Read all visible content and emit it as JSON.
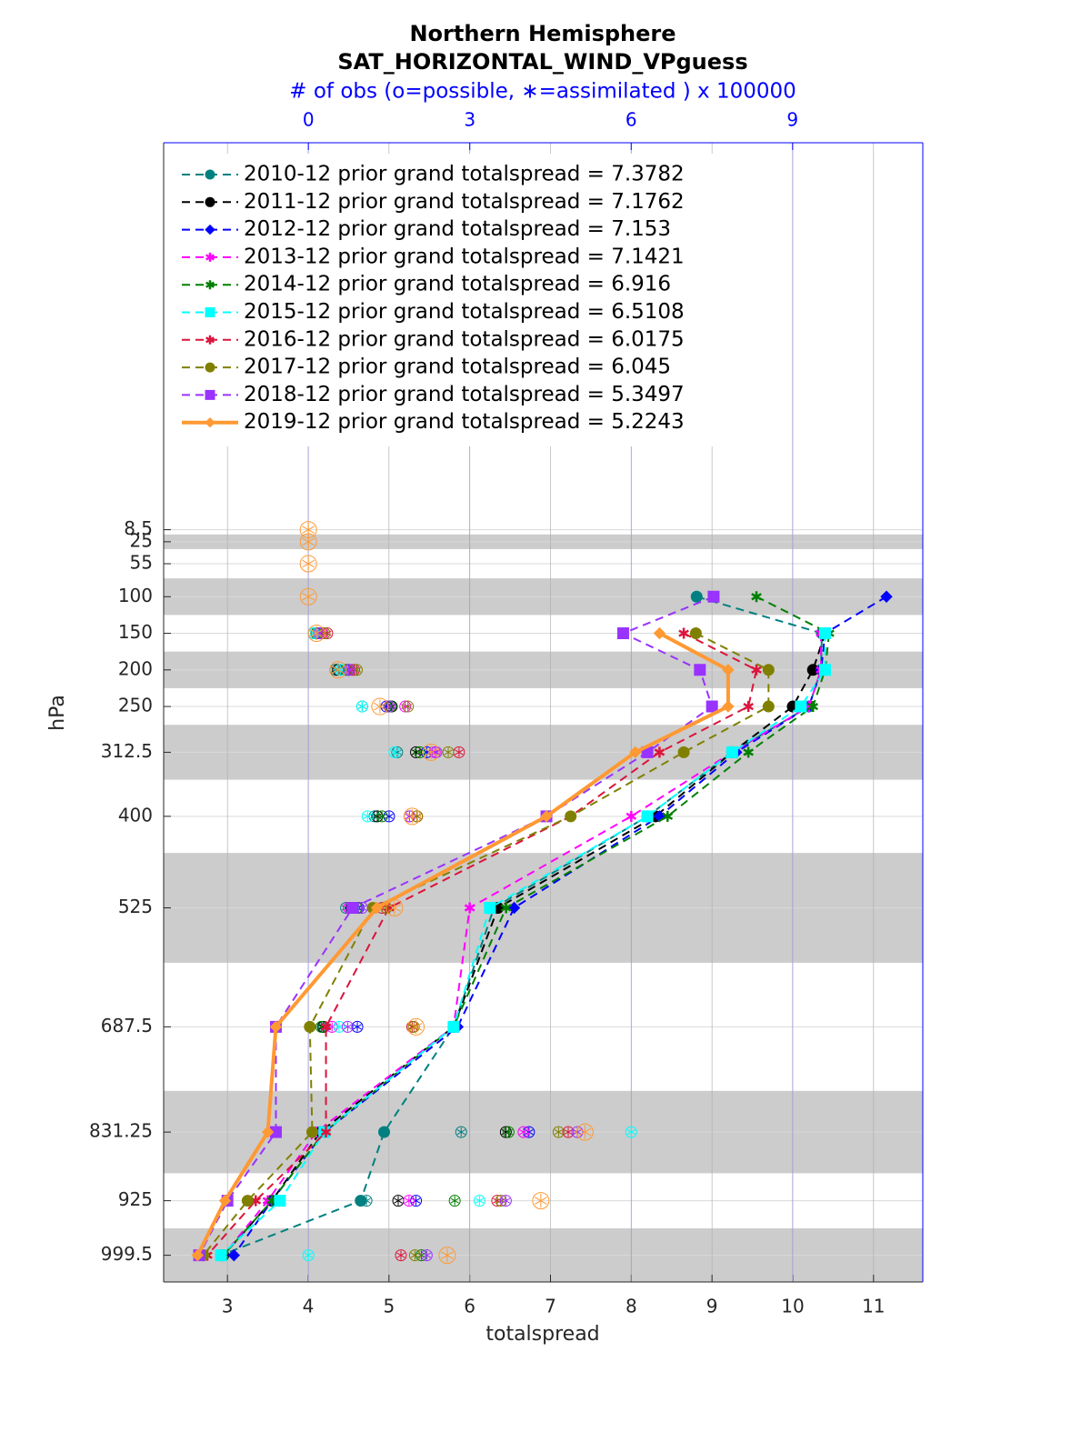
{
  "chart_data": {
    "type": "line",
    "title": "Northern Hemisphere",
    "subtitle": "SAT_HORIZONTAL_WIND_VPguess",
    "x2_label": "# of obs (o=possible, ∗=assimilated ) x 100000",
    "x_label": "totalspread",
    "y_label": "hPa",
    "y": [
      8.5,
      25,
      55,
      100,
      150,
      200,
      250,
      312.5,
      400,
      525,
      687.5,
      831.25,
      925,
      999.5
    ],
    "xlim": [
      2.21,
      11.61
    ],
    "xticks": [
      3,
      4,
      5,
      6,
      7,
      8,
      9,
      10,
      11
    ],
    "x2lim": [
      -2.69,
      11.42
    ],
    "x2ticks": [
      0,
      3,
      6,
      9
    ],
    "ylim": [
      -520,
      1036
    ],
    "y_reversed": true,
    "yticks": [
      8.5,
      25,
      55,
      100,
      150,
      200,
      250,
      312.5,
      400,
      525,
      687.5,
      831.25,
      925,
      999.5
    ],
    "shaded_layers": [
      [
        15,
        35
      ],
      [
        75,
        125
      ],
      [
        175,
        225
      ],
      [
        275,
        350
      ],
      [
        450,
        600
      ],
      [
        775,
        887.5
      ],
      [
        962.75,
        1036
      ]
    ],
    "grid": true,
    "legend": "upper left",
    "series": [
      {
        "name": "2010-12 prior grand totalspread = 7.3782",
        "color": "#008080",
        "marker": "circle",
        "linestyle": "dashed",
        "values": [
          null,
          null,
          null,
          8.81,
          10.36,
          10.35,
          10.2,
          9.25,
          8.2,
          6.3,
          5.8,
          4.94,
          4.65,
          2.92
        ],
        "obs": [
          null,
          null,
          null,
          null,
          0.1,
          0.5,
          1.0,
          1.65,
          1.23,
          0.7,
          0.29,
          2.84,
          1.08,
          null
        ]
      },
      {
        "name": "2011-12 prior grand totalspread = 7.1762",
        "color": "#000000",
        "marker": "circle",
        "linestyle": "dashed",
        "values": [
          null,
          null,
          null,
          null,
          10.4,
          10.25,
          10.0,
          9.25,
          8.3,
          6.35,
          5.8,
          4.15,
          3.55,
          2.95
        ],
        "obs": [
          null,
          null,
          null,
          null,
          0.15,
          0.55,
          1.55,
          2.0,
          1.28,
          0.8,
          0.27,
          3.67,
          1.67,
          null
        ]
      },
      {
        "name": "2012-12 prior grand totalspread = 7.153",
        "color": "#0000ff",
        "marker": "diamond",
        "linestyle": "dashed",
        "values": [
          null,
          null,
          null,
          11.16,
          10.4,
          10.35,
          10.2,
          9.3,
          8.35,
          6.55,
          5.85,
          4.2,
          3.55,
          3.08
        ],
        "obs": [
          null,
          null,
          null,
          null,
          0.2,
          0.75,
          1.45,
          2.2,
          1.5,
          0.93,
          0.91,
          4.1,
          2.0,
          null
        ]
      },
      {
        "name": "2013-12 prior grand totalspread = 7.1421",
        "color": "#ff00ff",
        "marker": "star",
        "linestyle": "dashed",
        "values": [
          null,
          null,
          null,
          null,
          10.35,
          10.35,
          10.2,
          9.25,
          8.0,
          6.0,
          5.8,
          4.1,
          3.5,
          2.95
        ],
        "obs": [
          null,
          null,
          null,
          null,
          0.25,
          0.8,
          1.8,
          2.35,
          1.88,
          0.75,
          0.44,
          4.0,
          1.87,
          null
        ]
      },
      {
        "name": "2014-12 prior grand totalspread = 6.916",
        "color": "#008000",
        "marker": "hexagram",
        "linestyle": "dashed",
        "values": [
          null,
          null,
          null,
          9.55,
          10.45,
          10.4,
          10.25,
          9.45,
          8.45,
          6.45,
          5.8,
          4.2,
          3.55,
          2.95
        ],
        "obs": [
          null,
          null,
          null,
          null,
          0.15,
          0.7,
          1.53,
          2.07,
          1.37,
          0.9,
          0.24,
          3.72,
          2.72,
          2.1
        ]
      },
      {
        "name": "2015-12 prior grand totalspread = 6.5108",
        "color": "#00ffff",
        "marker": "square",
        "linestyle": "dashed",
        "values": [
          null,
          null,
          null,
          null,
          10.4,
          10.4,
          10.1,
          9.25,
          8.2,
          6.25,
          5.8,
          4.2,
          3.65,
          2.92
        ],
        "obs": [
          null,
          null,
          null,
          null,
          0.1,
          0.6,
          1.0,
          1.6,
          1.1,
          0.83,
          0.57,
          6.0,
          3.18,
          0
        ]
      },
      {
        "name": "2016-12 prior grand totalspread = 6.0175",
        "color": "#dc143c",
        "marker": "star",
        "linestyle": "dashed",
        "values": [
          null,
          null,
          null,
          null,
          8.65,
          9.55,
          9.45,
          8.35,
          7.25,
          5.0,
          4.22,
          4.22,
          3.35,
          2.75
        ],
        "obs": [
          null,
          null,
          null,
          null,
          0.35,
          0.85,
          1.5,
          2.8,
          2.02,
          1.37,
          1.93,
          4.83,
          3.51,
          1.72
        ]
      },
      {
        "name": "2017-12 prior grand totalspread = 6.045",
        "color": "#808000",
        "marker": "circle",
        "linestyle": "dashed",
        "values": [
          null,
          null,
          null,
          null,
          8.8,
          9.7,
          9.7,
          8.65,
          7.25,
          4.8,
          4.02,
          4.05,
          3.25,
          2.7
        ],
        "obs": [
          null,
          null,
          null,
          null,
          0.3,
          0.9,
          1.85,
          2.6,
          2.02,
          1.45,
          1.96,
          4.65,
          3.58,
          1.98
        ]
      },
      {
        "name": "2018-12 prior grand totalspread = 5.3497",
        "color": "#9933ff",
        "marker": "square",
        "linestyle": "dashed",
        "values": [
          null,
          null,
          null,
          9.02,
          7.9,
          8.85,
          9.0,
          8.2,
          6.95,
          4.55,
          3.6,
          3.6,
          3.0,
          2.65
        ],
        "obs": [
          null,
          null,
          null,
          null,
          0.2,
          0.75,
          1.5,
          2.38,
          1.88,
          1.0,
          0.73,
          5.0,
          3.67,
          2.2
        ]
      },
      {
        "name": "2019-12 prior grand totalspread = 5.2243",
        "color": "#ff9933",
        "marker": "diamond",
        "linestyle": "solid",
        "values": [
          null,
          null,
          null,
          null,
          8.35,
          9.2,
          9.2,
          8.05,
          6.95,
          4.85,
          3.6,
          3.5,
          2.97,
          2.63
        ],
        "obs": [
          0,
          0,
          0,
          0,
          0.15,
          0.55,
          1.33,
          2.28,
          1.93,
          1.6,
          2.0,
          5.14,
          4.32,
          2.58
        ]
      }
    ]
  }
}
